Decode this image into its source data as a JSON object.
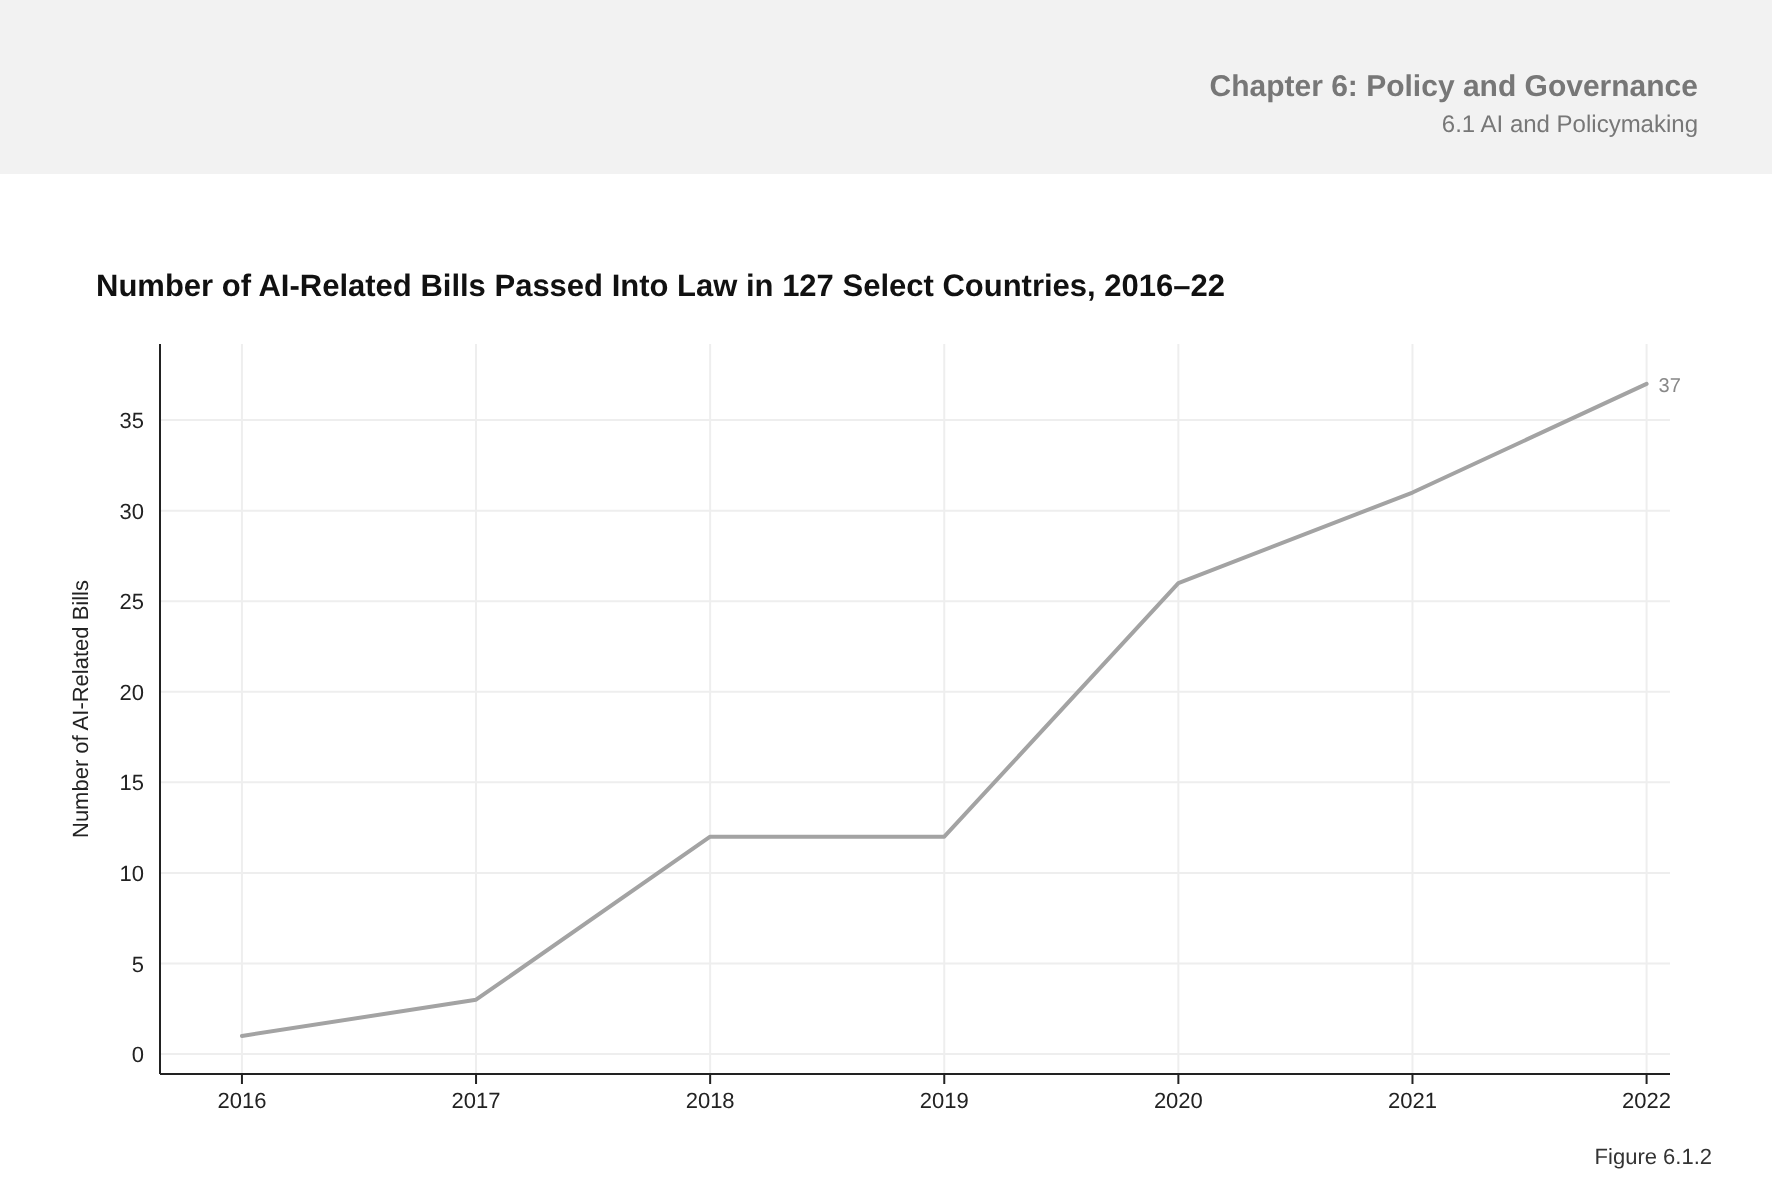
{
  "chart_data": {
    "type": "line",
    "title": "Number of AI-Related Bills Passed Into Law in 127 Select Countries, 2016–22",
    "ylabel": "Number of AI-Related Bills",
    "annotations": [
      "Chapter 6: Policy and Governance",
      "6.1 AI and Policymaking",
      "Figure 6.1.2"
    ],
    "x": [
      2016,
      2017,
      2018,
      2019,
      2020,
      2021,
      2022
    ],
    "series": [
      {
        "color": "#a3a3a3",
        "values": [
          1,
          3,
          12,
          12,
          26,
          31,
          37
        ],
        "value_labels": [
          null,
          null,
          null,
          null,
          null,
          null,
          "37"
        ]
      }
    ],
    "xlim": [
      2015.65,
      2022.1
    ],
    "xticks": [
      2016,
      2017,
      2018,
      2019,
      2020,
      2021,
      2022
    ],
    "ylim": [
      -1.1,
      39.2
    ],
    "yticks": [
      0,
      5,
      10,
      15,
      20,
      25,
      30,
      35
    ],
    "grid": true,
    "marker": "none",
    "line_style": "solid"
  }
}
